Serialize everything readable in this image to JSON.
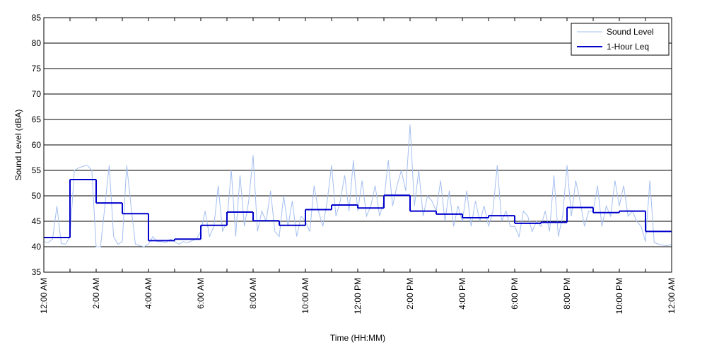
{
  "chart_data": {
    "type": "line",
    "xlabel": "Time (HH:MM)",
    "ylabel": "Sound Level (dBA)",
    "xlim": [
      0,
      1440
    ],
    "ylim": [
      35,
      85
    ],
    "xticks": [
      {
        "value": 0,
        "label": "12:00 AM"
      },
      {
        "value": 120,
        "label": "2:00 AM"
      },
      {
        "value": 240,
        "label": "4:00 AM"
      },
      {
        "value": 360,
        "label": "6:00 AM"
      },
      {
        "value": 480,
        "label": "8:00 AM"
      },
      {
        "value": 600,
        "label": "10:00 AM"
      },
      {
        "value": 720,
        "label": "12:00 PM"
      },
      {
        "value": 840,
        "label": "2:00 PM"
      },
      {
        "value": 960,
        "label": "4:00 PM"
      },
      {
        "value": 1080,
        "label": "6:00 PM"
      },
      {
        "value": 1200,
        "label": "8:00 PM"
      },
      {
        "value": 1320,
        "label": "10:00 PM"
      },
      {
        "value": 1440,
        "label": "12:00 AM"
      }
    ],
    "xminor_ticks": [
      60,
      180,
      300,
      420,
      540,
      660,
      780,
      900,
      1020,
      1140,
      1260,
      1380
    ],
    "yticks": [
      35,
      40,
      45,
      50,
      55,
      60,
      65,
      70,
      75,
      80,
      85
    ],
    "grid": "y",
    "legend": "upper right",
    "series": [
      {
        "name": "Sound Level",
        "color": "#a4bff0",
        "style": "line",
        "x": [
          0,
          10,
          20,
          30,
          40,
          50,
          60,
          70,
          80,
          90,
          100,
          110,
          120,
          130,
          140,
          150,
          160,
          170,
          180,
          190,
          200,
          210,
          220,
          230,
          240,
          250,
          260,
          270,
          280,
          290,
          300,
          310,
          320,
          330,
          340,
          350,
          360,
          370,
          380,
          390,
          400,
          410,
          420,
          430,
          440,
          450,
          460,
          470,
          480,
          490,
          500,
          510,
          520,
          530,
          540,
          550,
          560,
          570,
          580,
          590,
          600,
          610,
          620,
          630,
          640,
          650,
          660,
          670,
          680,
          690,
          700,
          710,
          720,
          730,
          740,
          750,
          760,
          770,
          780,
          790,
          800,
          810,
          820,
          830,
          840,
          850,
          860,
          870,
          880,
          890,
          900,
          910,
          920,
          930,
          940,
          950,
          960,
          970,
          980,
          990,
          1000,
          1010,
          1020,
          1030,
          1040,
          1050,
          1060,
          1070,
          1080,
          1090,
          1100,
          1110,
          1120,
          1130,
          1140,
          1150,
          1160,
          1170,
          1180,
          1190,
          1200,
          1210,
          1220,
          1230,
          1240,
          1250,
          1260,
          1270,
          1280,
          1290,
          1300,
          1310,
          1320,
          1330,
          1340,
          1350,
          1360,
          1370,
          1380,
          1390,
          1400,
          1410,
          1420,
          1430,
          1440
        ],
        "values": [
          41,
          40.8,
          41.5,
          48,
          40.6,
          40.5,
          42,
          55,
          55.5,
          55.8,
          56,
          55,
          40,
          40,
          48,
          56,
          42,
          40.5,
          41,
          56,
          48,
          40.5,
          40.2,
          40,
          40.5,
          42,
          41,
          41,
          40.8,
          41.5,
          41,
          40.5,
          41,
          40.8,
          41.2,
          41.5,
          43,
          47,
          42,
          44,
          52,
          43,
          45,
          55,
          42,
          54,
          44,
          49,
          58,
          43,
          47,
          45,
          51,
          43,
          42,
          50,
          44,
          49,
          42,
          46,
          45,
          43,
          52,
          47,
          44,
          49,
          56,
          46,
          49,
          54,
          47,
          57,
          47,
          53,
          46,
          48,
          52,
          46,
          49,
          57,
          48,
          52,
          55,
          51,
          64,
          48,
          55,
          46,
          50,
          49,
          47,
          53,
          45,
          51,
          44,
          48,
          45,
          51,
          44,
          49,
          45,
          48,
          44,
          47,
          56,
          45,
          47,
          44,
          44,
          42,
          47,
          46,
          43,
          45,
          44,
          47,
          43,
          54,
          42,
          46,
          56,
          46,
          53,
          49,
          44,
          47,
          47,
          52,
          44,
          48,
          46,
          53,
          48,
          52,
          46,
          47,
          45,
          44,
          41,
          53,
          40.8,
          40.5,
          40.3,
          40.2,
          40.5
        ]
      },
      {
        "name": "1-Hour Leq",
        "color": "#0000cc",
        "style": "step",
        "x": [
          0,
          60,
          120,
          180,
          240,
          300,
          360,
          420,
          480,
          540,
          600,
          660,
          720,
          780,
          840,
          900,
          960,
          1020,
          1080,
          1140,
          1200,
          1260,
          1320,
          1380
        ],
        "values": [
          41.8,
          53.2,
          48.6,
          46.5,
          41.2,
          41.5,
          44.2,
          46.8,
          45.1,
          44.2,
          47.3,
          48.2,
          47.6,
          50.1,
          47.0,
          46.4,
          45.7,
          46.1,
          44.6,
          44.8,
          47.7,
          46.7,
          47.0,
          43.0
        ]
      }
    ]
  }
}
